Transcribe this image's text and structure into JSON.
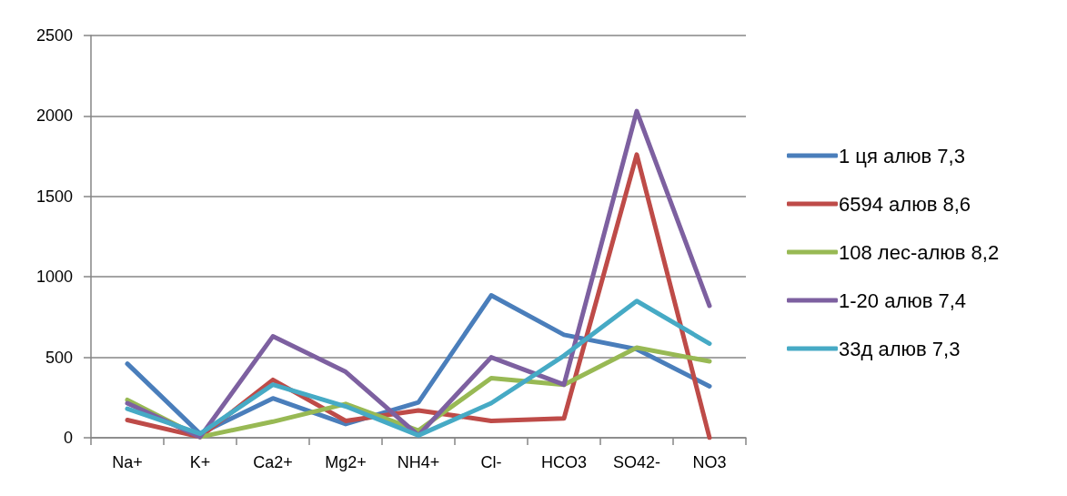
{
  "chart_data": {
    "type": "line",
    "categories": [
      "Na+",
      "K+",
      "Ca2+",
      "Mg2+",
      "NH4+",
      "Cl-",
      "HCO3",
      "SO42-",
      "NO3"
    ],
    "series": [
      {
        "name": "1 ця алюв 7,3",
        "color": "#4a7ebb",
        "values": [
          460,
          25,
          245,
          85,
          220,
          885,
          640,
          550,
          320
        ]
      },
      {
        "name": "6594 алюв 8,6",
        "color": "#be4b48",
        "values": [
          110,
          5,
          360,
          105,
          170,
          105,
          120,
          1760,
          0
        ]
      },
      {
        "name": "108 лес-алюв 8,2",
        "color": "#98b954",
        "values": [
          235,
          5,
          100,
          210,
          45,
          370,
          330,
          560,
          475
        ]
      },
      {
        "name": "1-20 алюв 7,4",
        "color": "#7d60a0",
        "values": [
          215,
          5,
          630,
          410,
          15,
          500,
          330,
          2030,
          820
        ]
      },
      {
        "name": "33д алюв 7,3",
        "color": "#46aac5",
        "values": [
          180,
          25,
          330,
          195,
          15,
          215,
          510,
          850,
          585
        ]
      }
    ],
    "ylim": [
      0,
      2500
    ],
    "yticks": [
      0,
      500,
      1000,
      1500,
      2000,
      2500
    ],
    "grid": "y",
    "legend": "right",
    "marker": "none",
    "line_style": "solid"
  }
}
